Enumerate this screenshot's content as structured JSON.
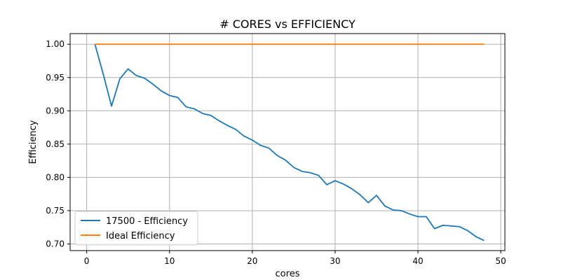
{
  "chart_data": {
    "type": "line",
    "title": "# CORES vs EFFICIENCY",
    "xlabel": "cores",
    "ylabel": "Efficiency",
    "xlim": [
      -2,
      50.5
    ],
    "ylim": [
      0.69,
      1.016
    ],
    "xticks": [
      0,
      10,
      20,
      30,
      40,
      50
    ],
    "yticks": [
      0.7,
      0.75,
      0.8,
      0.85,
      0.9,
      0.95,
      1.0
    ],
    "xtick_labels": [
      "0",
      "10",
      "20",
      "30",
      "40",
      "50"
    ],
    "ytick_labels": [
      "0.70",
      "0.75",
      "0.80",
      "0.85",
      "0.90",
      "0.95",
      "1.00"
    ],
    "grid": true,
    "legend_position": "bottom-left",
    "series": [
      {
        "name": "17500 - Efficiency",
        "color": "#1f77b4",
        "x": [
          1,
          2,
          3,
          4,
          5,
          6,
          7,
          8,
          9,
          10,
          11,
          12,
          13,
          14,
          15,
          16,
          17,
          18,
          19,
          20,
          21,
          22,
          23,
          24,
          25,
          26,
          27,
          28,
          29,
          30,
          31,
          32,
          33,
          34,
          35,
          36,
          37,
          38,
          39,
          40,
          41,
          42,
          43,
          44,
          45,
          46,
          47,
          48
        ],
        "y": [
          1.0,
          0.955,
          0.907,
          0.948,
          0.963,
          0.953,
          0.949,
          0.94,
          0.93,
          0.923,
          0.92,
          0.906,
          0.903,
          0.896,
          0.893,
          0.885,
          0.878,
          0.872,
          0.862,
          0.856,
          0.848,
          0.844,
          0.833,
          0.826,
          0.815,
          0.809,
          0.807,
          0.803,
          0.789,
          0.795,
          0.79,
          0.783,
          0.774,
          0.762,
          0.773,
          0.757,
          0.751,
          0.75,
          0.745,
          0.741,
          0.741,
          0.723,
          0.728,
          0.727,
          0.726,
          0.72,
          0.711,
          0.705
        ]
      },
      {
        "name": "Ideal Efficiency",
        "color": "#ff7f0e",
        "x": [
          1,
          48
        ],
        "y": [
          1.0,
          1.0
        ]
      }
    ]
  }
}
